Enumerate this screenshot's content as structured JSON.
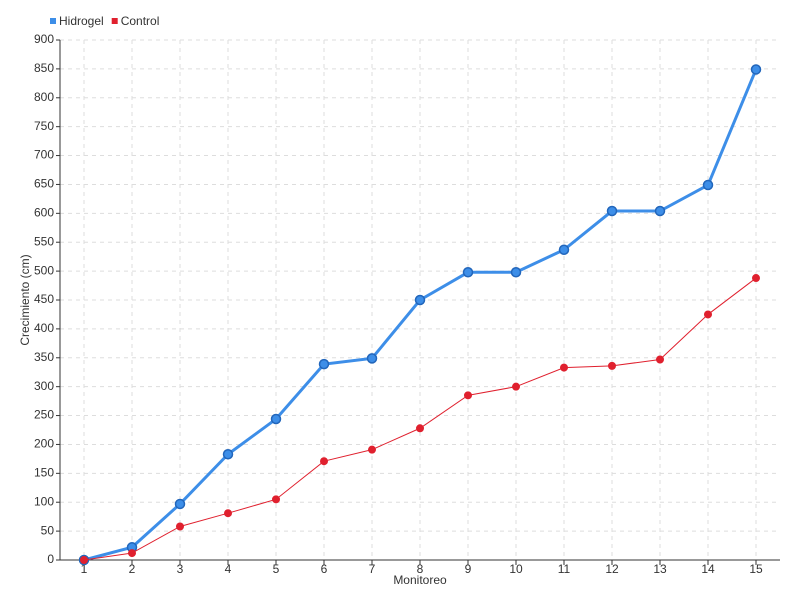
{
  "chart_data": {
    "type": "line",
    "x_label": "Monitoreo",
    "y_label": "Crecimiento (cm)",
    "categories": [
      "1",
      "2",
      "3",
      "4",
      "5",
      "6",
      "7",
      "8",
      "9",
      "10",
      "11",
      "12",
      "13",
      "14",
      "15"
    ],
    "series": [
      {
        "name": "Hidrogel",
        "color": "#3d8ee8",
        "values": [
          0,
          22,
          97,
          183,
          244,
          339,
          349,
          450,
          498,
          498,
          537,
          604,
          604,
          649,
          849
        ]
      },
      {
        "name": "Control",
        "color": "#e0202e",
        "values": [
          0,
          12,
          58,
          81,
          105,
          171,
          191,
          228,
          285,
          300,
          333,
          336,
          347,
          425,
          488
        ]
      }
    ],
    "ylim": [
      0,
      900
    ],
    "yticks": [
      0,
      50,
      100,
      150,
      200,
      250,
      300,
      350,
      400,
      450,
      500,
      550,
      600,
      650,
      700,
      750,
      800,
      850,
      900
    ],
    "grid": true,
    "legend": "top-left"
  }
}
